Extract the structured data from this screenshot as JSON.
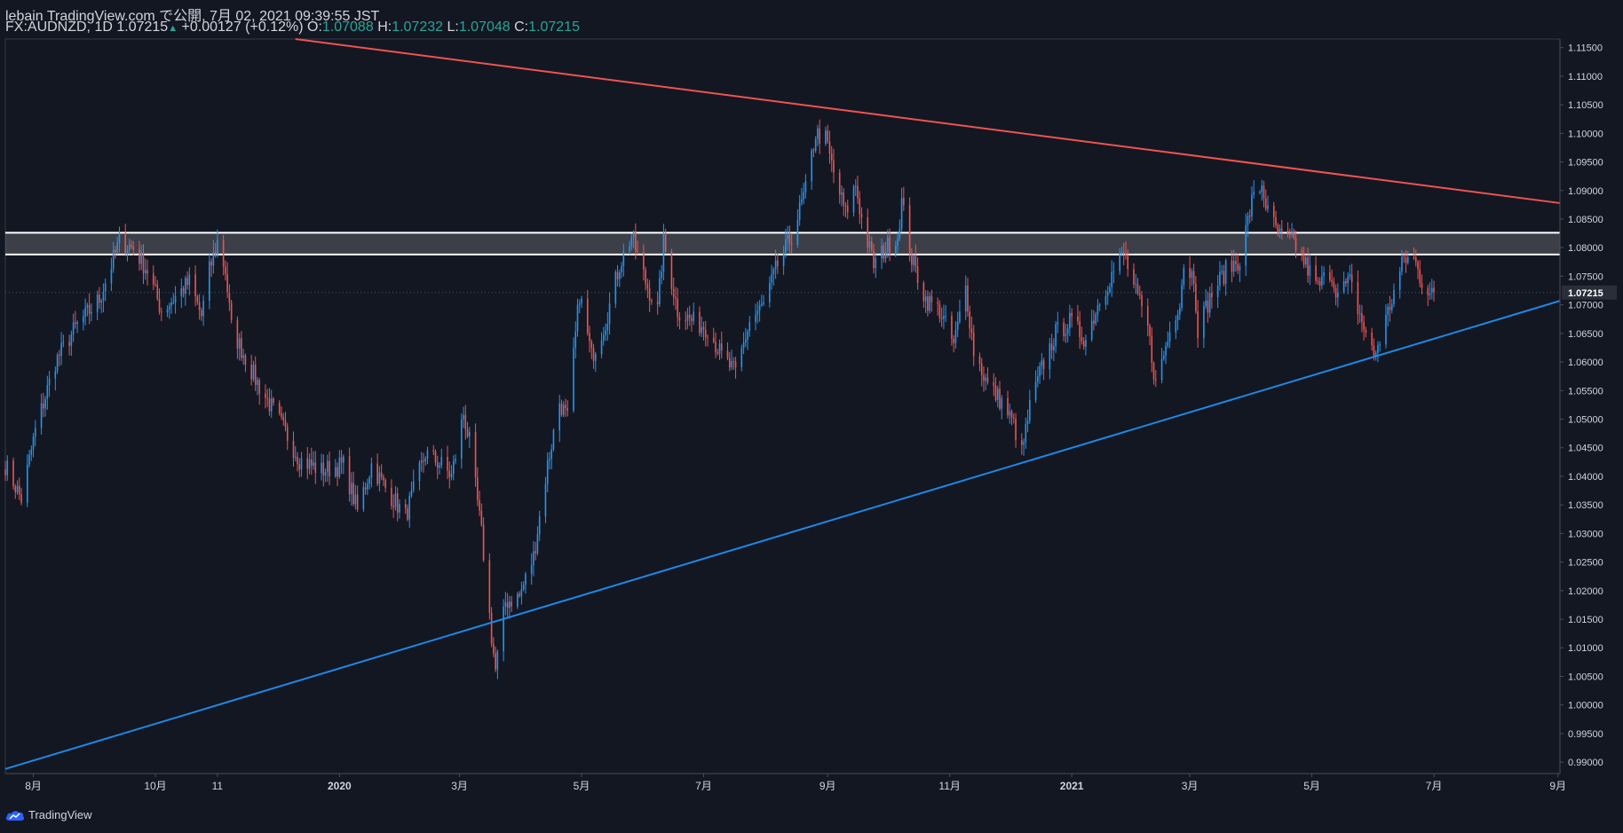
{
  "header": {
    "publish_line": "lebain TradingView.com で公開, 7月 02, 2021 09:39:55 JST",
    "symbol_interval": "FX:AUDNZD, 1D",
    "last_price": "1.07215",
    "change": "+0.00127 (+0.12%)",
    "open_label": "O:",
    "open_value": "1.07088",
    "high_label": "H:",
    "high_value": "1.07232",
    "low_label": "L:",
    "low_value": "1.07048",
    "close_label": "C:",
    "close_value": "1.07215"
  },
  "footer": {
    "brand": "TradingView"
  },
  "colors": {
    "background": "#131722",
    "up": "#2196f3",
    "down": "#ef5350",
    "resistance_line": "#ef5350",
    "support_line": "#1e88e5",
    "zone_border": "#ffffff"
  },
  "icons": {
    "brand_logo": "tradingview-cloud-icon"
  },
  "chart_data": {
    "type": "candlestick",
    "title": "FX:AUDNZD, 1D",
    "ylim": [
      0.988,
      1.1165
    ],
    "y_ticks": [
      "1.11500",
      "1.11000",
      "1.10500",
      "1.10000",
      "1.09500",
      "1.09000",
      "1.08500",
      "1.08000",
      "1.07500",
      "1.07000",
      "1.06500",
      "1.06000",
      "1.05500",
      "1.05000",
      "1.04500",
      "1.04000",
      "1.03500",
      "1.03000",
      "1.02500",
      "1.02000",
      "1.01500",
      "1.01000",
      "1.00500",
      "1.00000",
      "0.99500",
      "0.99000"
    ],
    "y_tick_values": [
      1.115,
      1.11,
      1.105,
      1.1,
      1.095,
      1.09,
      1.085,
      1.08,
      1.075,
      1.07,
      1.065,
      1.06,
      1.055,
      1.05,
      1.045,
      1.04,
      1.035,
      1.03,
      1.025,
      1.02,
      1.015,
      1.01,
      1.005,
      1.0,
      0.995,
      0.99
    ],
    "price_label": "1.07215",
    "price_value": 1.07215,
    "x_labels": [
      "8月",
      "10月",
      "11",
      "2020",
      "3月",
      "5月",
      "7月",
      "9月",
      "11月",
      "2021",
      "3月",
      "5月",
      "7月",
      "9月"
    ],
    "x_label_dates": [
      "2019-08-01",
      "2019-10-01",
      "2019-11-01",
      "2020-01-01",
      "2020-03-01",
      "2020-05-01",
      "2020-07-01",
      "2020-09-01",
      "2020-11-01",
      "2021-01-01",
      "2021-03-01",
      "2021-05-01",
      "2021-07-01",
      "2021-09-01"
    ],
    "x_range": [
      "2019-07-18",
      "2021-09-02"
    ],
    "anchors": [
      {
        "date": "2019-07-18",
        "close": 1.042
      },
      {
        "date": "2019-07-26",
        "close": 1.036
      },
      {
        "date": "2019-08-02",
        "close": 1.048
      },
      {
        "date": "2019-08-12",
        "close": 1.06
      },
      {
        "date": "2019-08-22",
        "close": 1.066
      },
      {
        "date": "2019-09-03",
        "close": 1.071
      },
      {
        "date": "2019-09-13",
        "close": 1.081
      },
      {
        "date": "2019-09-20",
        "close": 1.08
      },
      {
        "date": "2019-09-27",
        "close": 1.076
      },
      {
        "date": "2019-10-04",
        "close": 1.069
      },
      {
        "date": "2019-10-10",
        "close": 1.071
      },
      {
        "date": "2019-10-18",
        "close": 1.074
      },
      {
        "date": "2019-10-24",
        "close": 1.068
      },
      {
        "date": "2019-10-28",
        "close": 1.076
      },
      {
        "date": "2019-11-01",
        "close": 1.081
      },
      {
        "date": "2019-11-05",
        "close": 1.076
      },
      {
        "date": "2019-11-08",
        "close": 1.066
      },
      {
        "date": "2019-11-20",
        "close": 1.057
      },
      {
        "date": "2019-12-03",
        "close": 1.049
      },
      {
        "date": "2019-12-12",
        "close": 1.043
      },
      {
        "date": "2019-12-23",
        "close": 1.041
      },
      {
        "date": "2020-01-03",
        "close": 1.042
      },
      {
        "date": "2020-01-10",
        "close": 1.034
      },
      {
        "date": "2020-01-17",
        "close": 1.042
      },
      {
        "date": "2020-01-24",
        "close": 1.038
      },
      {
        "date": "2020-02-03",
        "close": 1.033
      },
      {
        "date": "2020-02-13",
        "close": 1.044
      },
      {
        "date": "2020-02-21",
        "close": 1.042
      },
      {
        "date": "2020-02-26",
        "close": 1.04
      },
      {
        "date": "2020-03-03",
        "close": 1.051
      },
      {
        "date": "2020-03-06",
        "close": 1.046
      },
      {
        "date": "2020-03-12",
        "close": 1.03
      },
      {
        "date": "2020-03-17",
        "close": 1.012
      },
      {
        "date": "2020-03-19",
        "close": 1.006
      },
      {
        "date": "2020-03-24",
        "close": 1.018
      },
      {
        "date": "2020-03-31",
        "close": 1.019
      },
      {
        "date": "2020-04-07",
        "close": 1.026
      },
      {
        "date": "2020-04-14",
        "close": 1.042
      },
      {
        "date": "2020-04-20",
        "close": 1.053
      },
      {
        "date": "2020-04-24",
        "close": 1.05
      },
      {
        "date": "2020-04-30",
        "close": 1.072
      },
      {
        "date": "2020-05-06",
        "close": 1.061
      },
      {
        "date": "2020-05-13",
        "close": 1.067
      },
      {
        "date": "2020-05-20",
        "close": 1.077
      },
      {
        "date": "2020-05-26",
        "close": 1.082
      },
      {
        "date": "2020-06-02",
        "close": 1.074
      },
      {
        "date": "2020-06-08",
        "close": 1.069
      },
      {
        "date": "2020-06-11",
        "close": 1.081
      },
      {
        "date": "2020-06-18",
        "close": 1.069
      },
      {
        "date": "2020-06-26",
        "close": 1.067
      },
      {
        "date": "2020-07-03",
        "close": 1.066
      },
      {
        "date": "2020-07-10",
        "close": 1.061
      },
      {
        "date": "2020-07-17",
        "close": 1.058
      },
      {
        "date": "2020-07-24",
        "close": 1.067
      },
      {
        "date": "2020-07-31",
        "close": 1.07
      },
      {
        "date": "2020-08-07",
        "close": 1.077
      },
      {
        "date": "2020-08-14",
        "close": 1.082
      },
      {
        "date": "2020-08-21",
        "close": 1.09
      },
      {
        "date": "2020-08-26",
        "close": 1.1
      },
      {
        "date": "2020-08-31",
        "close": 1.099
      },
      {
        "date": "2020-09-04",
        "close": 1.093
      },
      {
        "date": "2020-09-10",
        "close": 1.086
      },
      {
        "date": "2020-09-15",
        "close": 1.091
      },
      {
        "date": "2020-09-18",
        "close": 1.085
      },
      {
        "date": "2020-09-24",
        "close": 1.077
      },
      {
        "date": "2020-09-30",
        "close": 1.08
      },
      {
        "date": "2020-10-06",
        "close": 1.082
      },
      {
        "date": "2020-10-08",
        "close": 1.088
      },
      {
        "date": "2020-10-13",
        "close": 1.078
      },
      {
        "date": "2020-10-20",
        "close": 1.071
      },
      {
        "date": "2020-10-27",
        "close": 1.069
      },
      {
        "date": "2020-11-03",
        "close": 1.063
      },
      {
        "date": "2020-11-09",
        "close": 1.073
      },
      {
        "date": "2020-11-13",
        "close": 1.062
      },
      {
        "date": "2020-11-20",
        "close": 1.056
      },
      {
        "date": "2020-11-27",
        "close": 1.053
      },
      {
        "date": "2020-12-03",
        "close": 1.049
      },
      {
        "date": "2020-12-07",
        "close": 1.044
      },
      {
        "date": "2020-12-11",
        "close": 1.052
      },
      {
        "date": "2020-12-17",
        "close": 1.059
      },
      {
        "date": "2020-12-24",
        "close": 1.065
      },
      {
        "date": "2020-12-31",
        "close": 1.067
      },
      {
        "date": "2021-01-08",
        "close": 1.064
      },
      {
        "date": "2021-01-15",
        "close": 1.071
      },
      {
        "date": "2021-01-22",
        "close": 1.076
      },
      {
        "date": "2021-01-27",
        "close": 1.079
      },
      {
        "date": "2021-02-02",
        "close": 1.072
      },
      {
        "date": "2021-02-08",
        "close": 1.066
      },
      {
        "date": "2021-02-12",
        "close": 1.056
      },
      {
        "date": "2021-02-18",
        "close": 1.064
      },
      {
        "date": "2021-02-24",
        "close": 1.071
      },
      {
        "date": "2021-02-26",
        "close": 1.077
      },
      {
        "date": "2021-03-03",
        "close": 1.075
      },
      {
        "date": "2021-03-05",
        "close": 1.066
      },
      {
        "date": "2021-03-12",
        "close": 1.072
      },
      {
        "date": "2021-03-19",
        "close": 1.076
      },
      {
        "date": "2021-03-26",
        "close": 1.078
      },
      {
        "date": "2021-04-01",
        "close": 1.088
      },
      {
        "date": "2021-04-06",
        "close": 1.091
      },
      {
        "date": "2021-04-09",
        "close": 1.086
      },
      {
        "date": "2021-04-15",
        "close": 1.082
      },
      {
        "date": "2021-04-22",
        "close": 1.081
      },
      {
        "date": "2021-04-28",
        "close": 1.077
      },
      {
        "date": "2021-05-04",
        "close": 1.073
      },
      {
        "date": "2021-05-10",
        "close": 1.076
      },
      {
        "date": "2021-05-14",
        "close": 1.072
      },
      {
        "date": "2021-05-20",
        "close": 1.074
      },
      {
        "date": "2021-05-27",
        "close": 1.066
      },
      {
        "date": "2021-06-01",
        "close": 1.061
      },
      {
        "date": "2021-06-04",
        "close": 1.064
      },
      {
        "date": "2021-06-10",
        "close": 1.071
      },
      {
        "date": "2021-06-16",
        "close": 1.078
      },
      {
        "date": "2021-06-21",
        "close": 1.078
      },
      {
        "date": "2021-06-25",
        "close": 1.074
      },
      {
        "date": "2021-07-01",
        "close": 1.07215
      }
    ],
    "resistance_trendline": [
      {
        "date": "2019-12-10",
        "price": 1.1165
      },
      {
        "date": "2021-09-02",
        "price": 1.0878
      }
    ],
    "support_trendline": [
      {
        "date": "2019-07-18",
        "price": 0.9888
      },
      {
        "date": "2021-09-02",
        "price": 1.0707
      }
    ],
    "zone": {
      "upper": 1.0826,
      "lower": 1.0788
    }
  }
}
